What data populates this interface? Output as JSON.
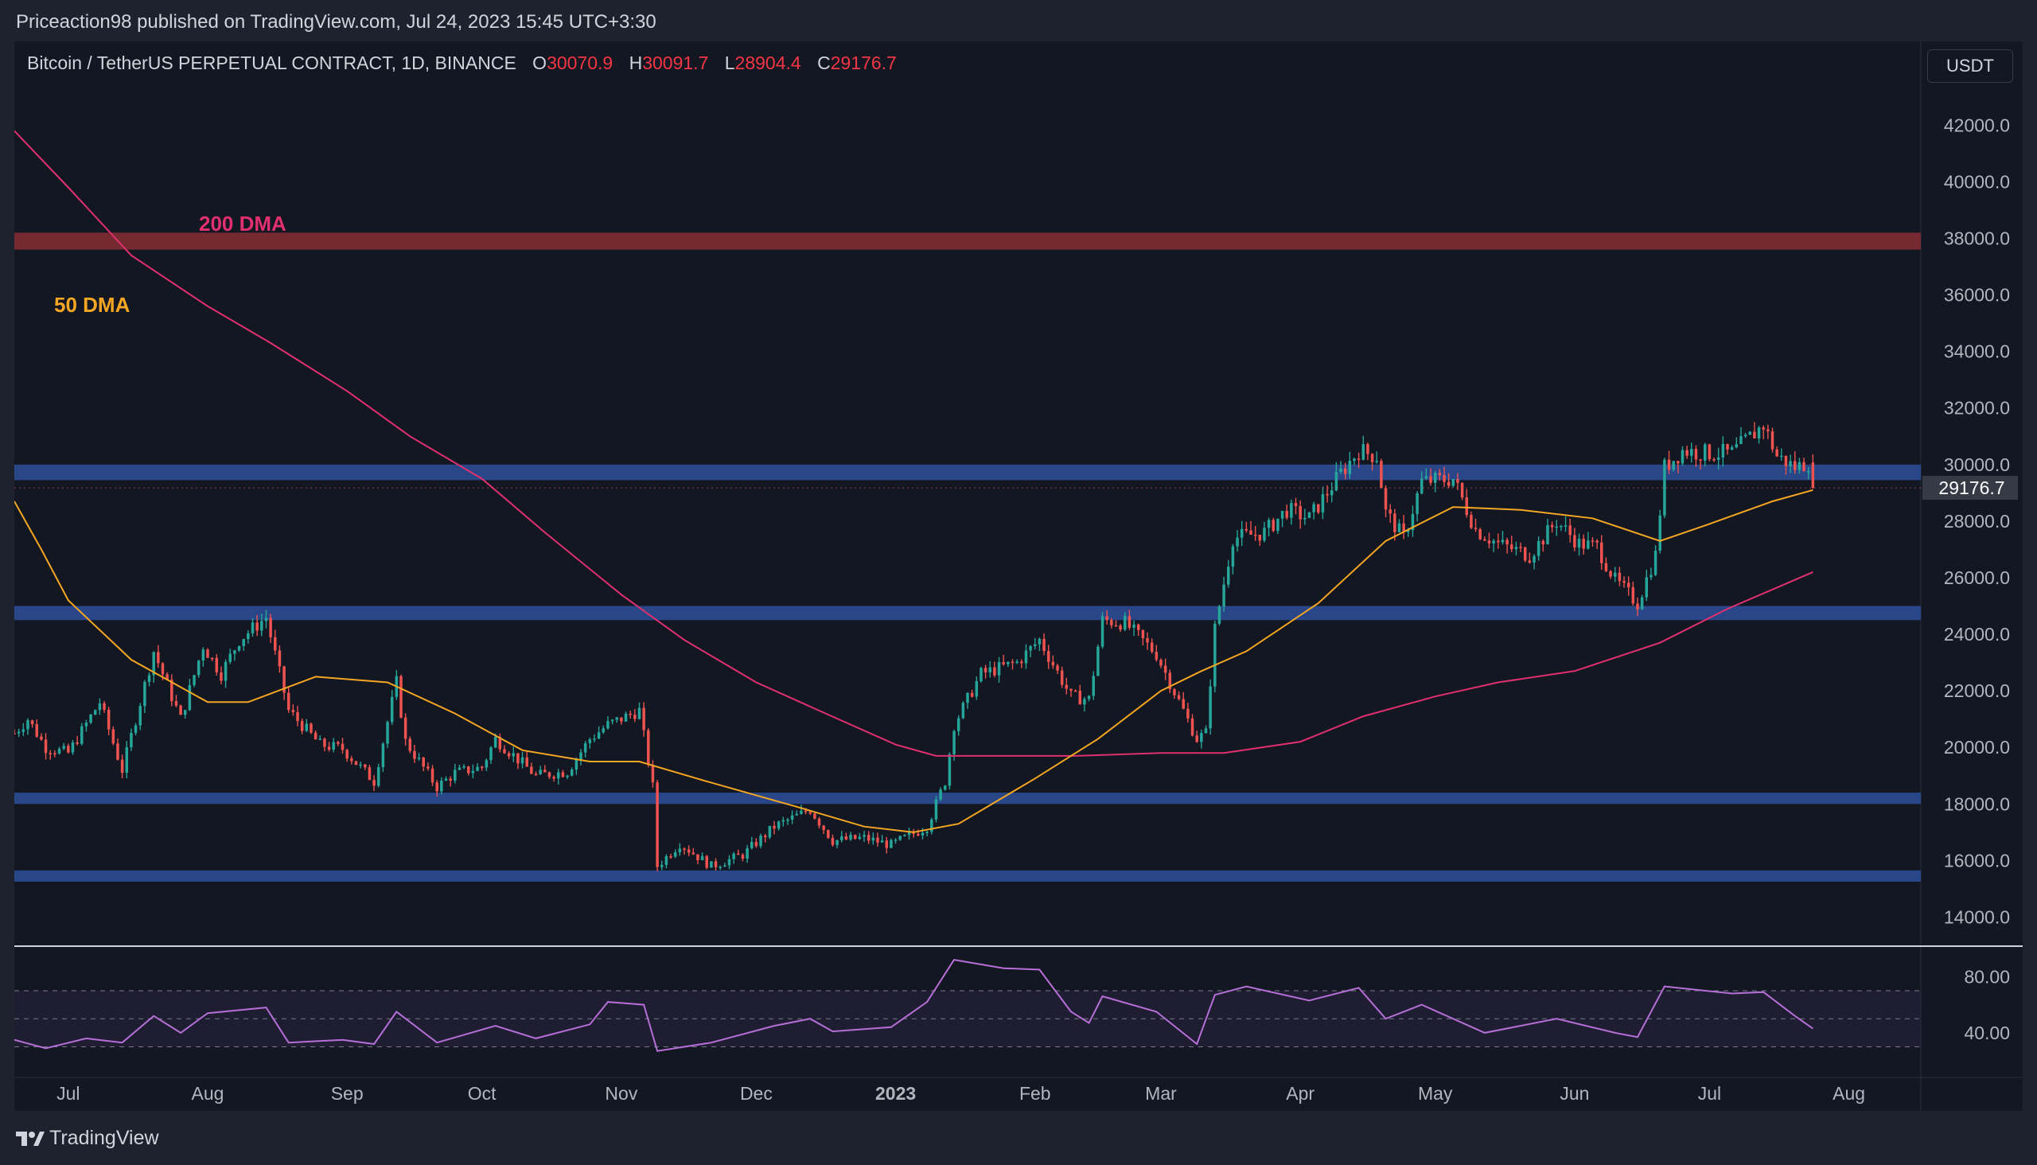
{
  "header": {
    "publish_line": "Priceaction98 published on TradingView.com, Jul 24, 2023 15:45 UTC+3:30"
  },
  "legend": {
    "symbol": "Bitcoin / TetherUS PERPETUAL CONTRACT, 1D, BINANCE",
    "open_label": "O",
    "open": "30070.9",
    "high_label": "H",
    "high": "30091.7",
    "low_label": "L",
    "low": "28904.4",
    "close_label": "C",
    "close": "29176.7"
  },
  "currency_button": "USDT",
  "footer": {
    "brand": "TradingView"
  },
  "colors": {
    "background": "#131722",
    "up": "#26a69a",
    "down": "#ef5350",
    "ma50": "#f5a623",
    "ma200": "#e0306f",
    "support_zone": "#2a4a8e",
    "resistance_zone": "#7a2a33",
    "rsi": "#b56fd6"
  },
  "chart_data": {
    "type": "candlestick",
    "symbol": "Bitcoin / TetherUS PERPETUAL CONTRACT",
    "interval": "1D",
    "exchange": "BINANCE",
    "ylim": [
      13000,
      43500
    ],
    "y_ticks": [
      "42000.0",
      "40000.0",
      "38000.0",
      "36000.0",
      "34000.0",
      "32000.0",
      "30000.0",
      "28000.0",
      "26000.0",
      "24000.0",
      "22000.0",
      "20000.0",
      "18000.0",
      "16000.0",
      "14000.0"
    ],
    "y_tick_values": [
      42000,
      40000,
      38000,
      36000,
      34000,
      32000,
      30000,
      28000,
      26000,
      24000,
      22000,
      20000,
      18000,
      16000,
      14000
    ],
    "x_tick_labels": [
      "Jul",
      "Aug",
      "Sep",
      "Oct",
      "Nov",
      "Dec",
      "2023",
      "Feb",
      "Mar",
      "Apr",
      "May",
      "Jun",
      "Jul",
      "Aug"
    ],
    "x_tick_dates": [
      "2022-07-01",
      "2022-08-01",
      "2022-09-01",
      "2022-10-01",
      "2022-11-01",
      "2022-12-01",
      "2023-01-01",
      "2023-02-01",
      "2023-03-01",
      "2023-04-01",
      "2023-05-01",
      "2023-06-01",
      "2023-07-01",
      "2023-08-01"
    ],
    "last_price_label": "29176.7",
    "last_price": 29176.7,
    "zones": [
      {
        "kind": "resistance",
        "from": 37600,
        "to": 38200
      },
      {
        "kind": "support",
        "from": 29450,
        "to": 30000
      },
      {
        "kind": "support",
        "from": 24500,
        "to": 25000
      },
      {
        "kind": "support",
        "from": 18000,
        "to": 18400
      },
      {
        "kind": "support",
        "from": 15250,
        "to": 15650
      }
    ],
    "annotations": [
      {
        "text": "200 DMA",
        "color": "#e0306f"
      },
      {
        "text": "50 DMA",
        "color": "#f5a623"
      }
    ],
    "price_path": [
      [
        "2022-06-19",
        20500
      ],
      [
        "2022-06-22",
        21000
      ],
      [
        "2022-06-26",
        20000
      ],
      [
        "2022-07-01",
        19800
      ],
      [
        "2022-07-08",
        21600
      ],
      [
        "2022-07-13",
        19200
      ],
      [
        "2022-07-20",
        23400
      ],
      [
        "2022-07-26",
        21000
      ],
      [
        "2022-07-31",
        23600
      ],
      [
        "2022-08-04",
        22600
      ],
      [
        "2022-08-08",
        23800
      ],
      [
        "2022-08-14",
        24600
      ],
      [
        "2022-08-19",
        21300
      ],
      [
        "2022-08-26",
        20100
      ],
      [
        "2022-08-31",
        19950
      ],
      [
        "2022-09-07",
        18800
      ],
      [
        "2022-09-12",
        22300
      ],
      [
        "2022-09-14",
        20200
      ],
      [
        "2022-09-21",
        18600
      ],
      [
        "2022-09-25",
        19100
      ],
      [
        "2022-10-01",
        19300
      ],
      [
        "2022-10-04",
        20300
      ],
      [
        "2022-10-13",
        19000
      ],
      [
        "2022-10-20",
        19150
      ],
      [
        "2022-10-25",
        20300
      ],
      [
        "2022-10-29",
        20800
      ],
      [
        "2022-11-05",
        21300
      ],
      [
        "2022-11-08",
        18600
      ],
      [
        "2022-11-09",
        15800
      ],
      [
        "2022-11-14",
        16600
      ],
      [
        "2022-11-21",
        15800
      ],
      [
        "2022-11-28",
        16200
      ],
      [
        "2022-12-05",
        17200
      ],
      [
        "2022-12-13",
        17800
      ],
      [
        "2022-12-18",
        16700
      ],
      [
        "2022-12-25",
        16800
      ],
      [
        "2022-12-31",
        16550
      ],
      [
        "2023-01-08",
        17200
      ],
      [
        "2023-01-12",
        18800
      ],
      [
        "2023-01-14",
        20800
      ],
      [
        "2023-01-20",
        22600
      ],
      [
        "2023-01-28",
        23000
      ],
      [
        "2023-02-02",
        23800
      ],
      [
        "2023-02-09",
        21800
      ],
      [
        "2023-02-13",
        21700
      ],
      [
        "2023-02-16",
        24500
      ],
      [
        "2023-02-21",
        24400
      ],
      [
        "2023-02-28",
        23300
      ],
      [
        "2023-03-03",
        22300
      ],
      [
        "2023-03-09",
        20300
      ],
      [
        "2023-03-11",
        20500
      ],
      [
        "2023-03-13",
        24200
      ],
      [
        "2023-03-17",
        27400
      ],
      [
        "2023-03-24",
        27600
      ],
      [
        "2023-03-29",
        28400
      ],
      [
        "2023-04-03",
        28100
      ],
      [
        "2023-04-10",
        29700
      ],
      [
        "2023-04-14",
        30500
      ],
      [
        "2023-04-18",
        30300
      ],
      [
        "2023-04-20",
        28300
      ],
      [
        "2023-04-24",
        27400
      ],
      [
        "2023-04-26",
        28400
      ],
      [
        "2023-04-28",
        29400
      ],
      [
        "2023-05-05",
        29500
      ],
      [
        "2023-05-10",
        27700
      ],
      [
        "2023-05-15",
        27200
      ],
      [
        "2023-05-22",
        26800
      ],
      [
        "2023-05-28",
        28000
      ],
      [
        "2023-06-02",
        27200
      ],
      [
        "2023-06-06",
        27100
      ],
      [
        "2023-06-10",
        25900
      ],
      [
        "2023-06-15",
        25100
      ],
      [
        "2023-06-19",
        26800
      ],
      [
        "2023-06-21",
        29900
      ],
      [
        "2023-06-25",
        30500
      ],
      [
        "2023-06-30",
        30400
      ],
      [
        "2023-07-06",
        30400
      ],
      [
        "2023-07-13",
        31400
      ],
      [
        "2023-07-16",
        30300
      ],
      [
        "2023-07-20",
        29900
      ],
      [
        "2023-07-23",
        30070.9
      ],
      [
        "2023-07-24",
        29176.7
      ]
    ],
    "ma50_path": [
      [
        "2022-06-19",
        28700
      ],
      [
        "2022-06-25",
        27000
      ],
      [
        "2022-07-01",
        25200
      ],
      [
        "2022-07-15",
        23100
      ],
      [
        "2022-08-01",
        21600
      ],
      [
        "2022-08-10",
        21600
      ],
      [
        "2022-08-25",
        22500
      ],
      [
        "2022-09-10",
        22300
      ],
      [
        "2022-09-25",
        21200
      ],
      [
        "2022-10-10",
        19900
      ],
      [
        "2022-10-25",
        19500
      ],
      [
        "2022-11-05",
        19500
      ],
      [
        "2022-11-20",
        18800
      ],
      [
        "2022-12-10",
        17900
      ],
      [
        "2022-12-25",
        17200
      ],
      [
        "2023-01-05",
        17000
      ],
      [
        "2023-01-15",
        17300
      ],
      [
        "2023-02-01",
        18900
      ],
      [
        "2023-02-15",
        20300
      ],
      [
        "2023-03-01",
        22000
      ],
      [
        "2023-03-10",
        22700
      ],
      [
        "2023-03-20",
        23400
      ],
      [
        "2023-04-05",
        25100
      ],
      [
        "2023-04-20",
        27300
      ],
      [
        "2023-05-05",
        28500
      ],
      [
        "2023-05-20",
        28400
      ],
      [
        "2023-06-05",
        28100
      ],
      [
        "2023-06-20",
        27300
      ],
      [
        "2023-07-01",
        27900
      ],
      [
        "2023-07-15",
        28700
      ],
      [
        "2023-07-24",
        29100
      ]
    ],
    "ma200_path": [
      [
        "2022-06-19",
        41800
      ],
      [
        "2022-07-01",
        39800
      ],
      [
        "2022-07-15",
        37400
      ],
      [
        "2022-08-01",
        35600
      ],
      [
        "2022-08-15",
        34300
      ],
      [
        "2022-09-01",
        32600
      ],
      [
        "2022-09-15",
        31000
      ],
      [
        "2022-10-01",
        29500
      ],
      [
        "2022-10-15",
        27600
      ],
      [
        "2022-11-01",
        25400
      ],
      [
        "2022-11-15",
        23800
      ],
      [
        "2022-12-01",
        22300
      ],
      [
        "2022-12-15",
        21300
      ],
      [
        "2023-01-01",
        20100
      ],
      [
        "2023-01-10",
        19700
      ],
      [
        "2023-01-25",
        19700
      ],
      [
        "2023-02-10",
        19700
      ],
      [
        "2023-03-01",
        19800
      ],
      [
        "2023-03-15",
        19800
      ],
      [
        "2023-04-01",
        20200
      ],
      [
        "2023-04-15",
        21100
      ],
      [
        "2023-05-01",
        21800
      ],
      [
        "2023-05-15",
        22300
      ],
      [
        "2023-06-01",
        22700
      ],
      [
        "2023-06-20",
        23700
      ],
      [
        "2023-07-05",
        24900
      ],
      [
        "2023-07-24",
        26200
      ]
    ],
    "rsi": {
      "ylim": [
        15,
        100
      ],
      "y_ticks": [
        "80.00",
        "40.00"
      ],
      "y_tick_values": [
        80,
        40
      ],
      "bands": [
        30,
        50,
        70
      ],
      "path": [
        [
          "2022-06-19",
          35
        ],
        [
          "2022-06-26",
          29
        ],
        [
          "2022-07-05",
          36
        ],
        [
          "2022-07-13",
          33
        ],
        [
          "2022-07-20",
          52
        ],
        [
          "2022-07-26",
          40
        ],
        [
          "2022-08-01",
          54
        ],
        [
          "2022-08-14",
          58
        ],
        [
          "2022-08-19",
          33
        ],
        [
          "2022-08-31",
          35
        ],
        [
          "2022-09-07",
          32
        ],
        [
          "2022-09-12",
          55
        ],
        [
          "2022-09-21",
          33
        ],
        [
          "2022-10-04",
          45
        ],
        [
          "2022-10-13",
          36
        ],
        [
          "2022-10-25",
          46
        ],
        [
          "2022-10-29",
          62
        ],
        [
          "2022-11-06",
          60
        ],
        [
          "2022-11-09",
          27
        ],
        [
          "2022-11-21",
          33
        ],
        [
          "2022-12-05",
          45
        ],
        [
          "2022-12-13",
          50
        ],
        [
          "2022-12-18",
          41
        ],
        [
          "2022-12-31",
          44
        ],
        [
          "2023-01-08",
          62
        ],
        [
          "2023-01-14",
          92
        ],
        [
          "2023-01-25",
          86
        ],
        [
          "2023-02-02",
          85
        ],
        [
          "2023-02-09",
          55
        ],
        [
          "2023-02-13",
          47
        ],
        [
          "2023-02-16",
          66
        ],
        [
          "2023-02-28",
          55
        ],
        [
          "2023-03-09",
          32
        ],
        [
          "2023-03-13",
          67
        ],
        [
          "2023-03-20",
          73
        ],
        [
          "2023-04-03",
          63
        ],
        [
          "2023-04-14",
          72
        ],
        [
          "2023-04-20",
          50
        ],
        [
          "2023-04-28",
          60
        ],
        [
          "2023-05-12",
          40
        ],
        [
          "2023-05-28",
          50
        ],
        [
          "2023-06-10",
          40
        ],
        [
          "2023-06-15",
          37
        ],
        [
          "2023-06-21",
          73
        ],
        [
          "2023-07-06",
          68
        ],
        [
          "2023-07-13",
          69
        ],
        [
          "2023-07-20",
          52
        ],
        [
          "2023-07-24",
          43
        ]
      ]
    }
  }
}
